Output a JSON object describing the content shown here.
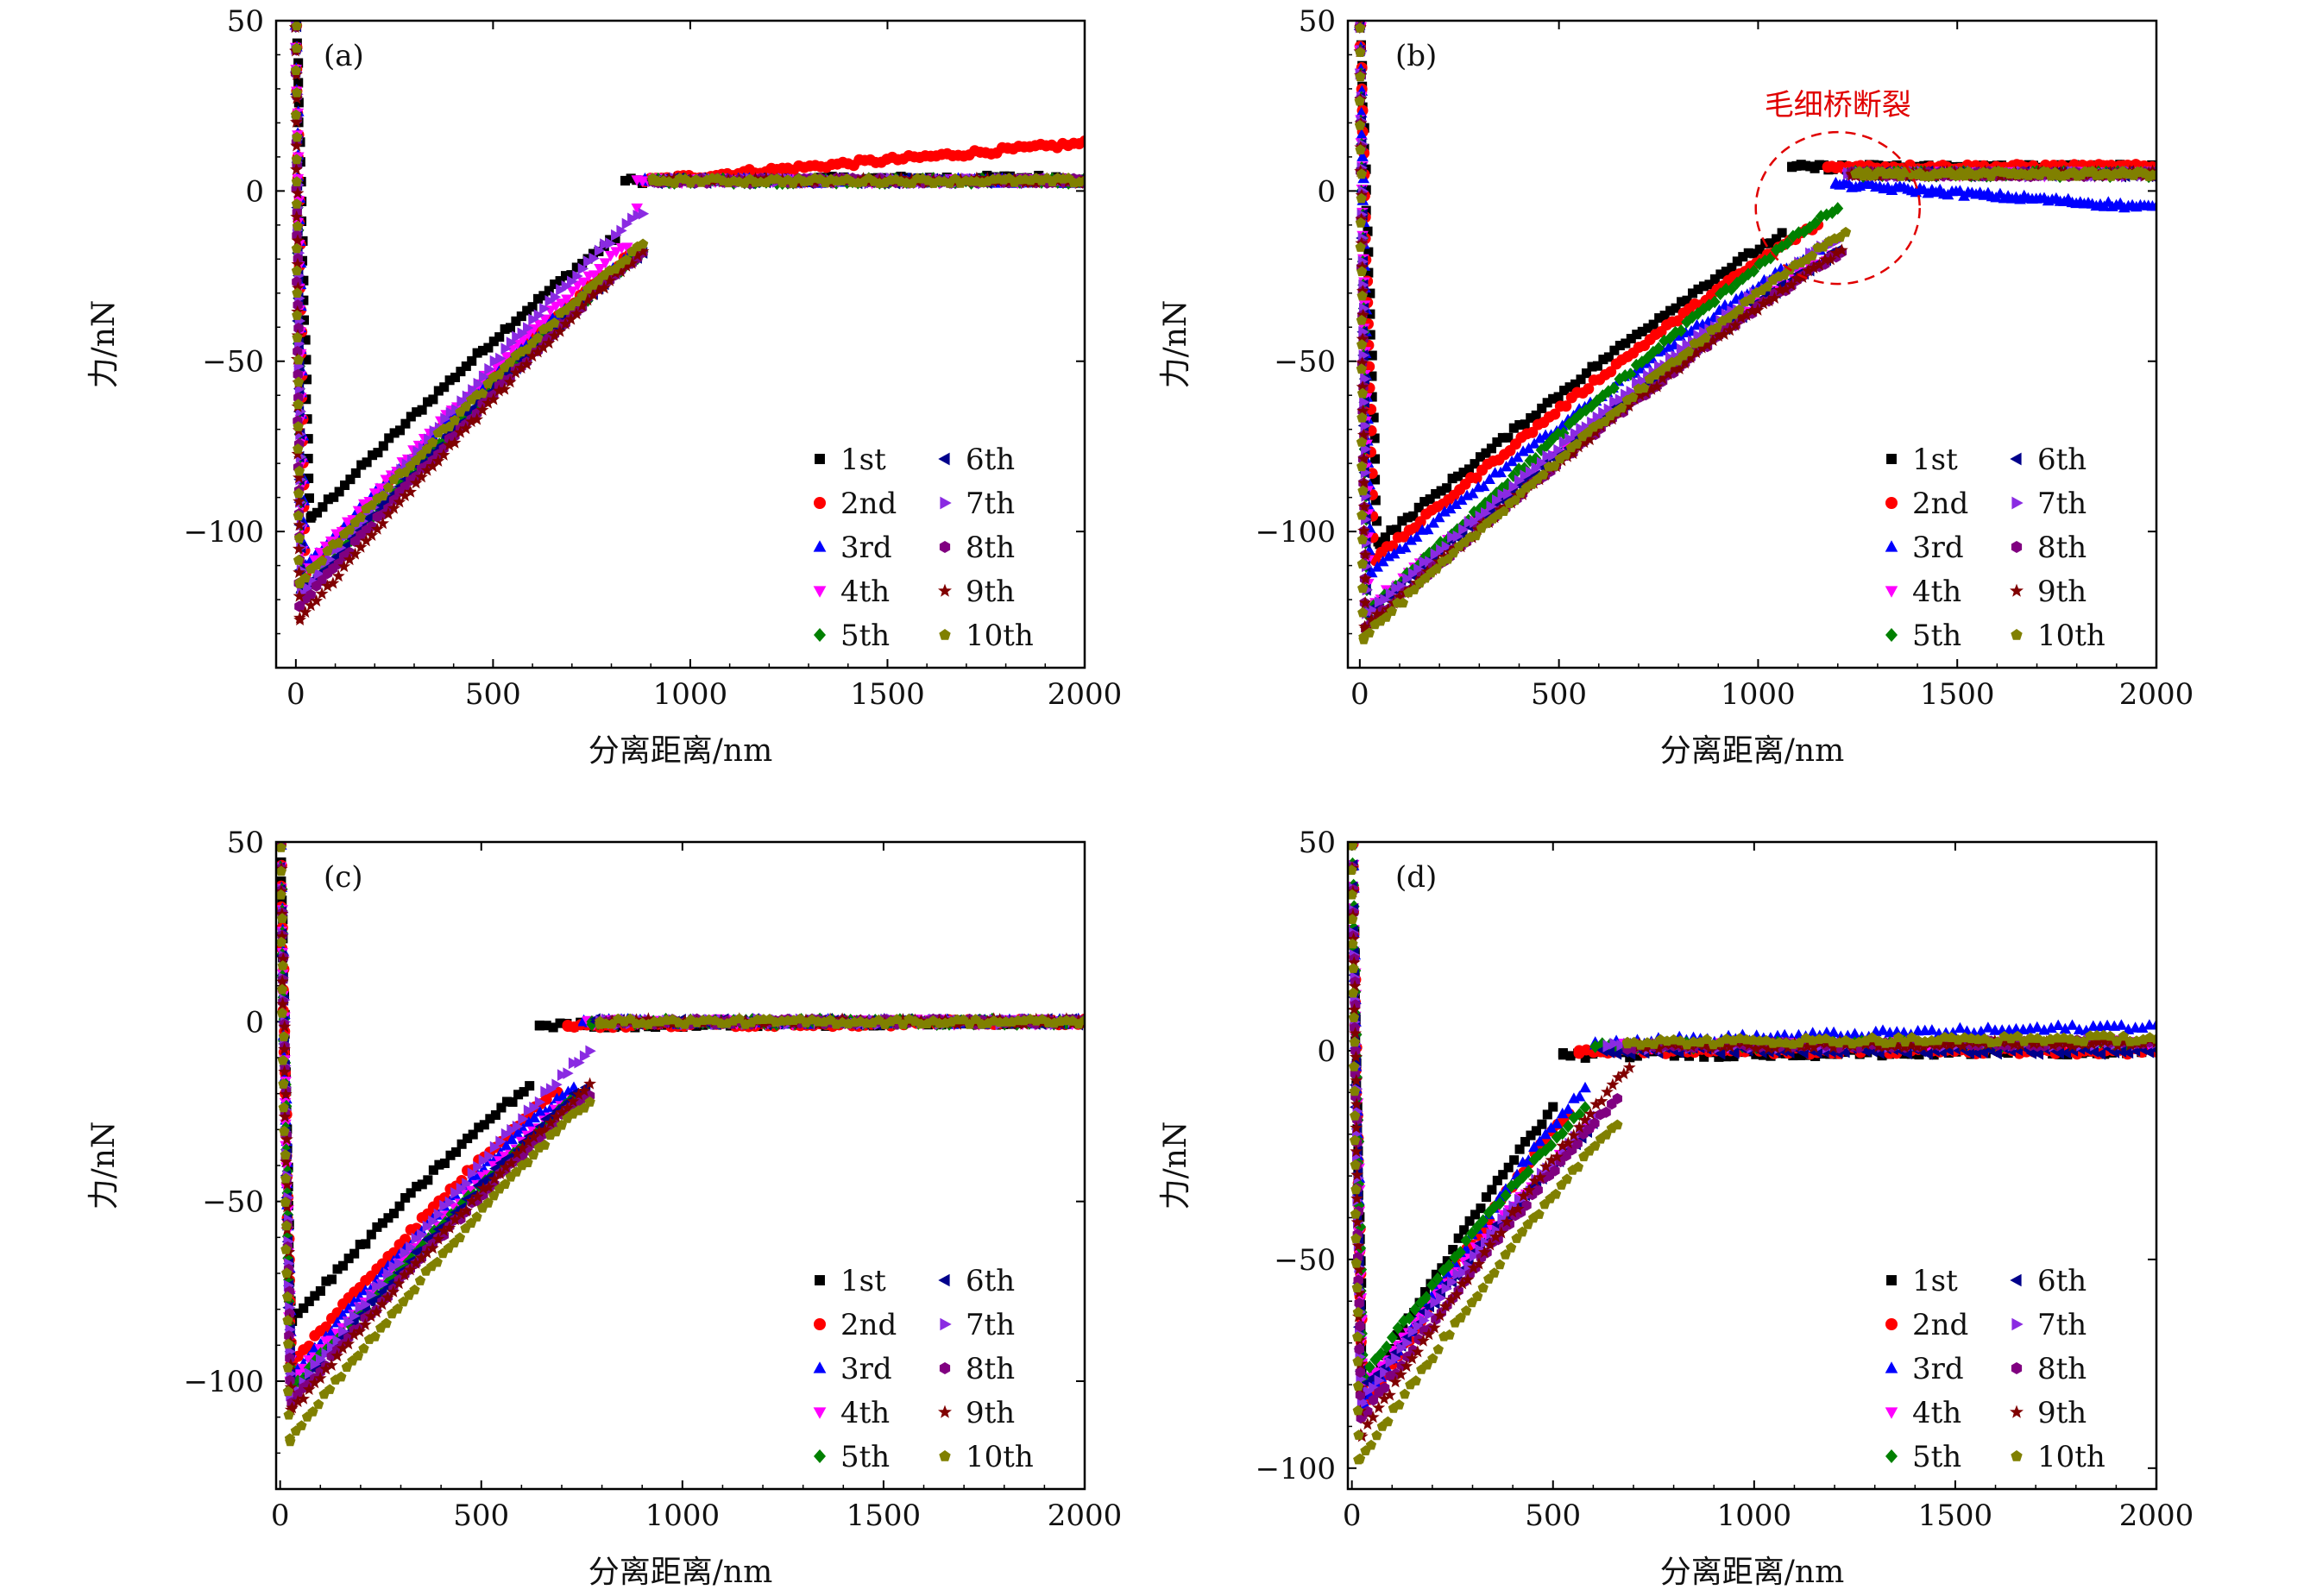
{
  "figure": {
    "marker_colors": {
      "1st": "#000000",
      "2nd": "#ff0000",
      "3rd": "#0000ff",
      "4th": "#ff00ff",
      "5th": "#008000",
      "6th": "#00008b",
      "7th": "#8a2be2",
      "8th": "#800080",
      "9th": "#800000",
      "10th": "#808000"
    },
    "annotation_color": "#e00000"
  },
  "chart_data": [
    {
      "type": "scatter",
      "panel_label": "(a)",
      "title": "",
      "xlabel": "分离距离/nm",
      "ylabel": "力/nN",
      "xlim": [
        -50,
        2000
      ],
      "ylim": [
        -140,
        50
      ],
      "xticks": [
        0,
        500,
        1000,
        1500,
        2000
      ],
      "xtick_labels": [
        "0",
        "500",
        "1000",
        "1500",
        "2000"
      ],
      "yticks": [
        50,
        0,
        -50,
        -100
      ],
      "ytick_labels": [
        "50",
        "0",
        "−50",
        "−100"
      ],
      "legend": [
        "1st",
        "2nd",
        "3rd",
        "4th",
        "5th",
        "6th",
        "7th",
        "8th",
        "9th",
        "10th"
      ],
      "legend_position": "bottom-right",
      "series": [
        {
          "name": "1st",
          "marker": "square",
          "min_x": 40,
          "min_y": -96,
          "end_x": 810,
          "end_y": -14,
          "jump_y": 3,
          "flat_start": 3,
          "flat_end": 4
        },
        {
          "name": "2nd",
          "marker": "circle",
          "min_x": 25,
          "min_y": -112,
          "end_x": 860,
          "end_y": -18,
          "jump_y": 3,
          "flat_start": 3,
          "flat_end": 14
        },
        {
          "name": "3rd",
          "marker": "triangle-up",
          "min_x": 25,
          "min_y": -110,
          "end_x": 860,
          "end_y": -18,
          "jump_y": 3,
          "flat_start": 3,
          "flat_end": 3
        },
        {
          "name": "4th",
          "marker": "triangle-down",
          "min_x": 20,
          "min_y": -112,
          "end_x": 840,
          "end_y": -16,
          "jump_y": -5,
          "flat_start": 3,
          "flat_end": 3
        },
        {
          "name": "5th",
          "marker": "diamond",
          "min_x": 15,
          "min_y": -118,
          "end_x": 880,
          "end_y": -18,
          "jump_y": 3,
          "flat_start": 3,
          "flat_end": 3
        },
        {
          "name": "6th",
          "marker": "triangle-left",
          "min_x": 15,
          "min_y": -118,
          "end_x": 880,
          "end_y": -18,
          "jump_y": 3,
          "flat_start": 3,
          "flat_end": 3
        },
        {
          "name": "7th",
          "marker": "triangle-right",
          "min_x": 15,
          "min_y": -118,
          "end_x": 880,
          "end_y": -6,
          "jump_y": 3,
          "flat_start": 3,
          "flat_end": 3
        },
        {
          "name": "8th",
          "marker": "hexagon",
          "min_x": 10,
          "min_y": -122,
          "end_x": 880,
          "end_y": -18,
          "jump_y": 3,
          "flat_start": 3,
          "flat_end": 3
        },
        {
          "name": "9th",
          "marker": "star",
          "min_x": 10,
          "min_y": -126,
          "end_x": 880,
          "end_y": -18,
          "jump_y": 3,
          "flat_start": 3,
          "flat_end": 3
        },
        {
          "name": "10th",
          "marker": "pentagon",
          "min_x": 10,
          "min_y": -115,
          "end_x": 880,
          "end_y": -16,
          "jump_y": 3,
          "flat_start": 3,
          "flat_end": 3
        }
      ]
    },
    {
      "type": "scatter",
      "panel_label": "(b)",
      "title": "",
      "xlabel": "分离距离/nm",
      "ylabel": "力/nN",
      "xlim": [
        -30,
        2000
      ],
      "ylim": [
        -140,
        50
      ],
      "xticks": [
        0,
        500,
        1000,
        1500,
        2000
      ],
      "xtick_labels": [
        "0",
        "500",
        "1000",
        "1500",
        "2000"
      ],
      "yticks": [
        50,
        0,
        -50,
        -100
      ],
      "ytick_labels": [
        "50",
        "0",
        "−50",
        "−100"
      ],
      "legend": [
        "1st",
        "2nd",
        "3rd",
        "4th",
        "5th",
        "6th",
        "7th",
        "8th",
        "9th",
        "10th"
      ],
      "legend_position": "bottom-right",
      "annotation": {
        "text": "毛细桥断裂",
        "x": 1200,
        "y": -5
      },
      "series": [
        {
          "name": "1st",
          "marker": "square",
          "min_x": 50,
          "min_y": -103,
          "end_x": 1060,
          "end_y": -13,
          "jump_y": 7,
          "flat_start": 7,
          "flat_end": 7
        },
        {
          "name": "2nd",
          "marker": "circle",
          "min_x": 40,
          "min_y": -108,
          "end_x": 1150,
          "end_y": -10,
          "jump_y": 7,
          "flat_start": 7,
          "flat_end": 7
        },
        {
          "name": "3rd",
          "marker": "triangle-up",
          "min_x": 30,
          "min_y": -112,
          "end_x": 1170,
          "end_y": -16,
          "jump_y": 2,
          "flat_start": 2,
          "flat_end": -5
        },
        {
          "name": "4th",
          "marker": "triangle-down",
          "min_x": 25,
          "min_y": -122,
          "end_x": 1200,
          "end_y": -18,
          "jump_y": 5,
          "flat_start": 5,
          "flat_end": 5
        },
        {
          "name": "5th",
          "marker": "diamond",
          "min_x": 20,
          "min_y": -124,
          "end_x": 1200,
          "end_y": -5,
          "jump_y": 5,
          "flat_start": 5,
          "flat_end": 5
        },
        {
          "name": "6th",
          "marker": "triangle-left",
          "min_x": 20,
          "min_y": -124,
          "end_x": 1200,
          "end_y": -18,
          "jump_y": 5,
          "flat_start": 5,
          "flat_end": 5
        },
        {
          "name": "7th",
          "marker": "triangle-right",
          "min_x": 20,
          "min_y": -124,
          "end_x": 1200,
          "end_y": -14,
          "jump_y": 5,
          "flat_start": 5,
          "flat_end": 5
        },
        {
          "name": "8th",
          "marker": "hexagon",
          "min_x": 15,
          "min_y": -128,
          "end_x": 1210,
          "end_y": -18,
          "jump_y": 5,
          "flat_start": 5,
          "flat_end": 5
        },
        {
          "name": "9th",
          "marker": "star",
          "min_x": 15,
          "min_y": -128,
          "end_x": 1210,
          "end_y": -18,
          "jump_y": 5,
          "flat_start": 5,
          "flat_end": 5
        },
        {
          "name": "10th",
          "marker": "pentagon",
          "min_x": 10,
          "min_y": -131,
          "end_x": 1220,
          "end_y": -12,
          "jump_y": 5,
          "flat_start": 5,
          "flat_end": 5
        }
      ]
    },
    {
      "type": "scatter",
      "panel_label": "(c)",
      "title": "",
      "xlabel": "分离距离/nm",
      "ylabel": "力/nN",
      "xlim": [
        -10,
        2000
      ],
      "ylim": [
        -130,
        50
      ],
      "xticks": [
        0,
        500,
        1000,
        1500,
        2000
      ],
      "xtick_labels": [
        "0",
        "500",
        "1000",
        "1500",
        "2000"
      ],
      "yticks": [
        50,
        0,
        -50,
        -100
      ],
      "ytick_labels": [
        "50",
        "0",
        "−50",
        "−100"
      ],
      "legend": [
        "1st",
        "2nd",
        "3rd",
        "4th",
        "5th",
        "6th",
        "7th",
        "8th",
        "9th",
        "10th"
      ],
      "legend_position": "bottom-right",
      "series": [
        {
          "name": "1st",
          "marker": "square",
          "min_x": 30,
          "min_y": -83,
          "end_x": 620,
          "end_y": -18,
          "jump_y": -1,
          "flat_start": -1,
          "flat_end": 0
        },
        {
          "name": "2nd",
          "marker": "circle",
          "min_x": 30,
          "min_y": -95,
          "end_x": 690,
          "end_y": -19,
          "jump_y": -1,
          "flat_start": -1,
          "flat_end": 0
        },
        {
          "name": "3rd",
          "marker": "triangle-up",
          "min_x": 30,
          "min_y": -98,
          "end_x": 730,
          "end_y": -18,
          "jump_y": 0,
          "flat_start": 0,
          "flat_end": 0
        },
        {
          "name": "4th",
          "marker": "triangle-down",
          "min_x": 30,
          "min_y": -100,
          "end_x": 740,
          "end_y": -20,
          "jump_y": 0,
          "flat_start": 0,
          "flat_end": 0
        },
        {
          "name": "5th",
          "marker": "diamond",
          "min_x": 30,
          "min_y": -102,
          "end_x": 750,
          "end_y": -20,
          "jump_y": 0,
          "flat_start": 0,
          "flat_end": 0
        },
        {
          "name": "6th",
          "marker": "triangle-left",
          "min_x": 30,
          "min_y": -104,
          "end_x": 760,
          "end_y": -18,
          "jump_y": 0,
          "flat_start": 0,
          "flat_end": 0
        },
        {
          "name": "7th",
          "marker": "triangle-right",
          "min_x": 30,
          "min_y": -104,
          "end_x": 770,
          "end_y": -8,
          "jump_y": 0,
          "flat_start": 0,
          "flat_end": 0
        },
        {
          "name": "8th",
          "marker": "hexagon",
          "min_x": 30,
          "min_y": -106,
          "end_x": 770,
          "end_y": -20,
          "jump_y": 0,
          "flat_start": 0,
          "flat_end": 0
        },
        {
          "name": "9th",
          "marker": "star",
          "min_x": 30,
          "min_y": -108,
          "end_x": 770,
          "end_y": -18,
          "jump_y": 0,
          "flat_start": 0,
          "flat_end": 0
        },
        {
          "name": "10th",
          "marker": "pentagon",
          "min_x": 25,
          "min_y": -116,
          "end_x": 770,
          "end_y": -22,
          "jump_y": 0,
          "flat_start": 0,
          "flat_end": 0
        }
      ]
    },
    {
      "type": "scatter",
      "panel_label": "(d)",
      "title": "",
      "xlabel": "分离距离/nm",
      "ylabel": "力/nN",
      "xlim": [
        -10,
        2000
      ],
      "ylim": [
        -105,
        50
      ],
      "xticks": [
        0,
        500,
        1000,
        1500,
        2000
      ],
      "xtick_labels": [
        "0",
        "500",
        "1000",
        "1500",
        "2000"
      ],
      "yticks": [
        50,
        0,
        -50,
        -100
      ],
      "ytick_labels": [
        "50",
        "0",
        "−50",
        "−100"
      ],
      "legend": [
        "1st",
        "2nd",
        "3rd",
        "4th",
        "5th",
        "6th",
        "7th",
        "8th",
        "9th",
        "10th"
      ],
      "legend_position": "bottom-right",
      "series": [
        {
          "name": "1st",
          "marker": "square",
          "min_x": 30,
          "min_y": -82,
          "end_x": 500,
          "end_y": -14,
          "jump_y": -1,
          "flat_start": -1,
          "flat_end": 0
        },
        {
          "name": "2nd",
          "marker": "circle",
          "min_x": 30,
          "min_y": -86,
          "end_x": 540,
          "end_y": -15,
          "jump_y": 0,
          "flat_start": 0,
          "flat_end": 0
        },
        {
          "name": "3rd",
          "marker": "triangle-up",
          "min_x": 30,
          "min_y": -84,
          "end_x": 580,
          "end_y": -9,
          "jump_y": 2,
          "flat_start": 2,
          "flat_end": 6
        },
        {
          "name": "4th",
          "marker": "triangle-down",
          "min_x": 30,
          "min_y": -80,
          "end_x": 600,
          "end_y": -18,
          "jump_y": 1,
          "flat_start": 1,
          "flat_end": 2
        },
        {
          "name": "5th",
          "marker": "diamond",
          "min_x": 30,
          "min_y": -78,
          "end_x": 580,
          "end_y": -14,
          "jump_y": 1,
          "flat_start": 1,
          "flat_end": 2
        },
        {
          "name": "6th",
          "marker": "triangle-left",
          "min_x": 25,
          "min_y": -82,
          "end_x": 600,
          "end_y": -18,
          "jump_y": 0,
          "flat_start": 0,
          "flat_end": 0
        },
        {
          "name": "7th",
          "marker": "triangle-right",
          "min_x": 25,
          "min_y": -84,
          "end_x": 610,
          "end_y": -16,
          "jump_y": 1,
          "flat_start": 1,
          "flat_end": 2
        },
        {
          "name": "8th",
          "marker": "hexagon",
          "min_x": 25,
          "min_y": -88,
          "end_x": 660,
          "end_y": -12,
          "jump_y": 1,
          "flat_start": 1,
          "flat_end": 2
        },
        {
          "name": "9th",
          "marker": "star",
          "min_x": 25,
          "min_y": -92,
          "end_x": 690,
          "end_y": -4,
          "jump_y": 1,
          "flat_start": 1,
          "flat_end": 2
        },
        {
          "name": "10th",
          "marker": "pentagon",
          "min_x": 20,
          "min_y": -98,
          "end_x": 660,
          "end_y": -17,
          "jump_y": 2,
          "flat_start": 2,
          "flat_end": 3
        }
      ]
    }
  ]
}
